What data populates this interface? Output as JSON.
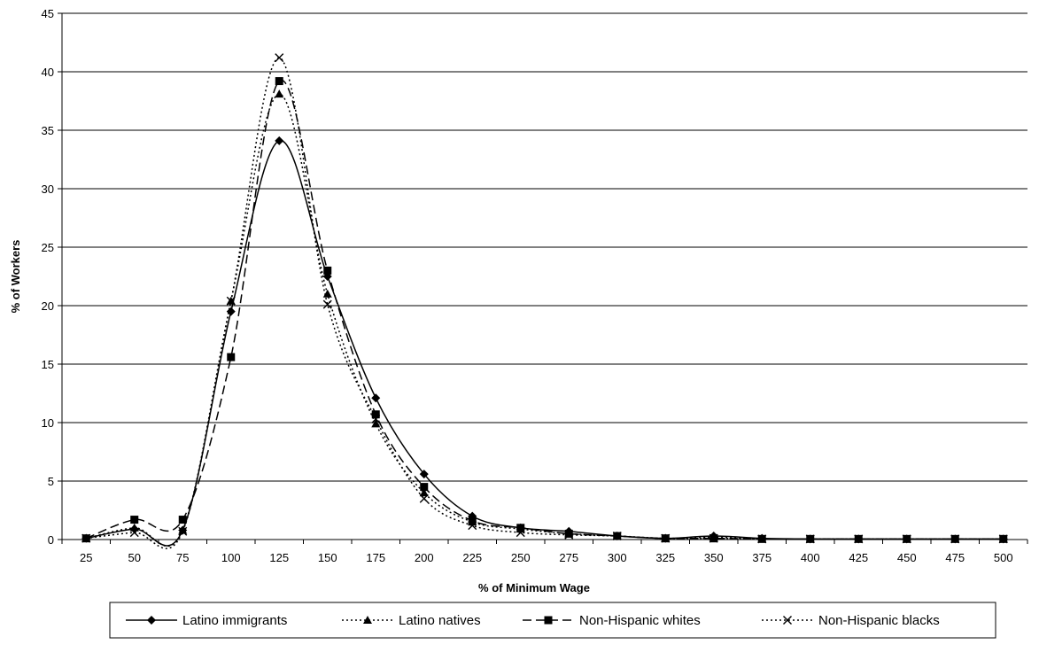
{
  "chart_data": {
    "type": "line",
    "title": "",
    "xlabel": "% of Minimum Wage",
    "ylabel": "% of Workers",
    "x": [
      25,
      50,
      75,
      100,
      125,
      150,
      175,
      200,
      225,
      250,
      275,
      300,
      325,
      350,
      375,
      400,
      425,
      450,
      475,
      500
    ],
    "y_ticks": [
      0,
      5,
      10,
      15,
      20,
      25,
      30,
      35,
      40,
      45
    ],
    "ylim": [
      0,
      45
    ],
    "grid": "horizontal",
    "legend_position": "bottom",
    "series": [
      {
        "name": "Latino immigrants",
        "marker": "diamond",
        "dash": "solid",
        "values": [
          0.1,
          0.9,
          0.8,
          19.5,
          34.1,
          22.5,
          12.1,
          5.6,
          2.0,
          1.0,
          0.7,
          0.3,
          0.1,
          0.3,
          0.1,
          0.05,
          0.05,
          0.05,
          0.05,
          0.05
        ]
      },
      {
        "name": "Latino natives",
        "marker": "triangle",
        "dash": "dotted",
        "values": [
          0.1,
          1.0,
          0.8,
          20.4,
          38.1,
          21.0,
          9.9,
          4.0,
          1.5,
          0.9,
          0.5,
          0.3,
          0.1,
          0.2,
          0.05,
          0.05,
          0.05,
          0.05,
          0.05,
          0.05
        ]
      },
      {
        "name": "Non-Hispanic whites",
        "marker": "square",
        "dash": "dashed",
        "values": [
          0.1,
          1.7,
          1.7,
          15.6,
          39.2,
          23.0,
          10.7,
          4.5,
          1.6,
          1.0,
          0.5,
          0.3,
          0.1,
          0.1,
          0.05,
          0.05,
          0.05,
          0.05,
          0.05,
          0.05
        ]
      },
      {
        "name": "Non-Hispanic blacks",
        "marker": "x",
        "dash": "dotted",
        "values": [
          0.1,
          0.6,
          0.7,
          20.4,
          41.2,
          20.1,
          10.3,
          3.5,
          1.2,
          0.6,
          0.4,
          0.3,
          0.1,
          0.1,
          0.05,
          0.05,
          0.05,
          0.05,
          0.05,
          0.05
        ]
      }
    ]
  }
}
